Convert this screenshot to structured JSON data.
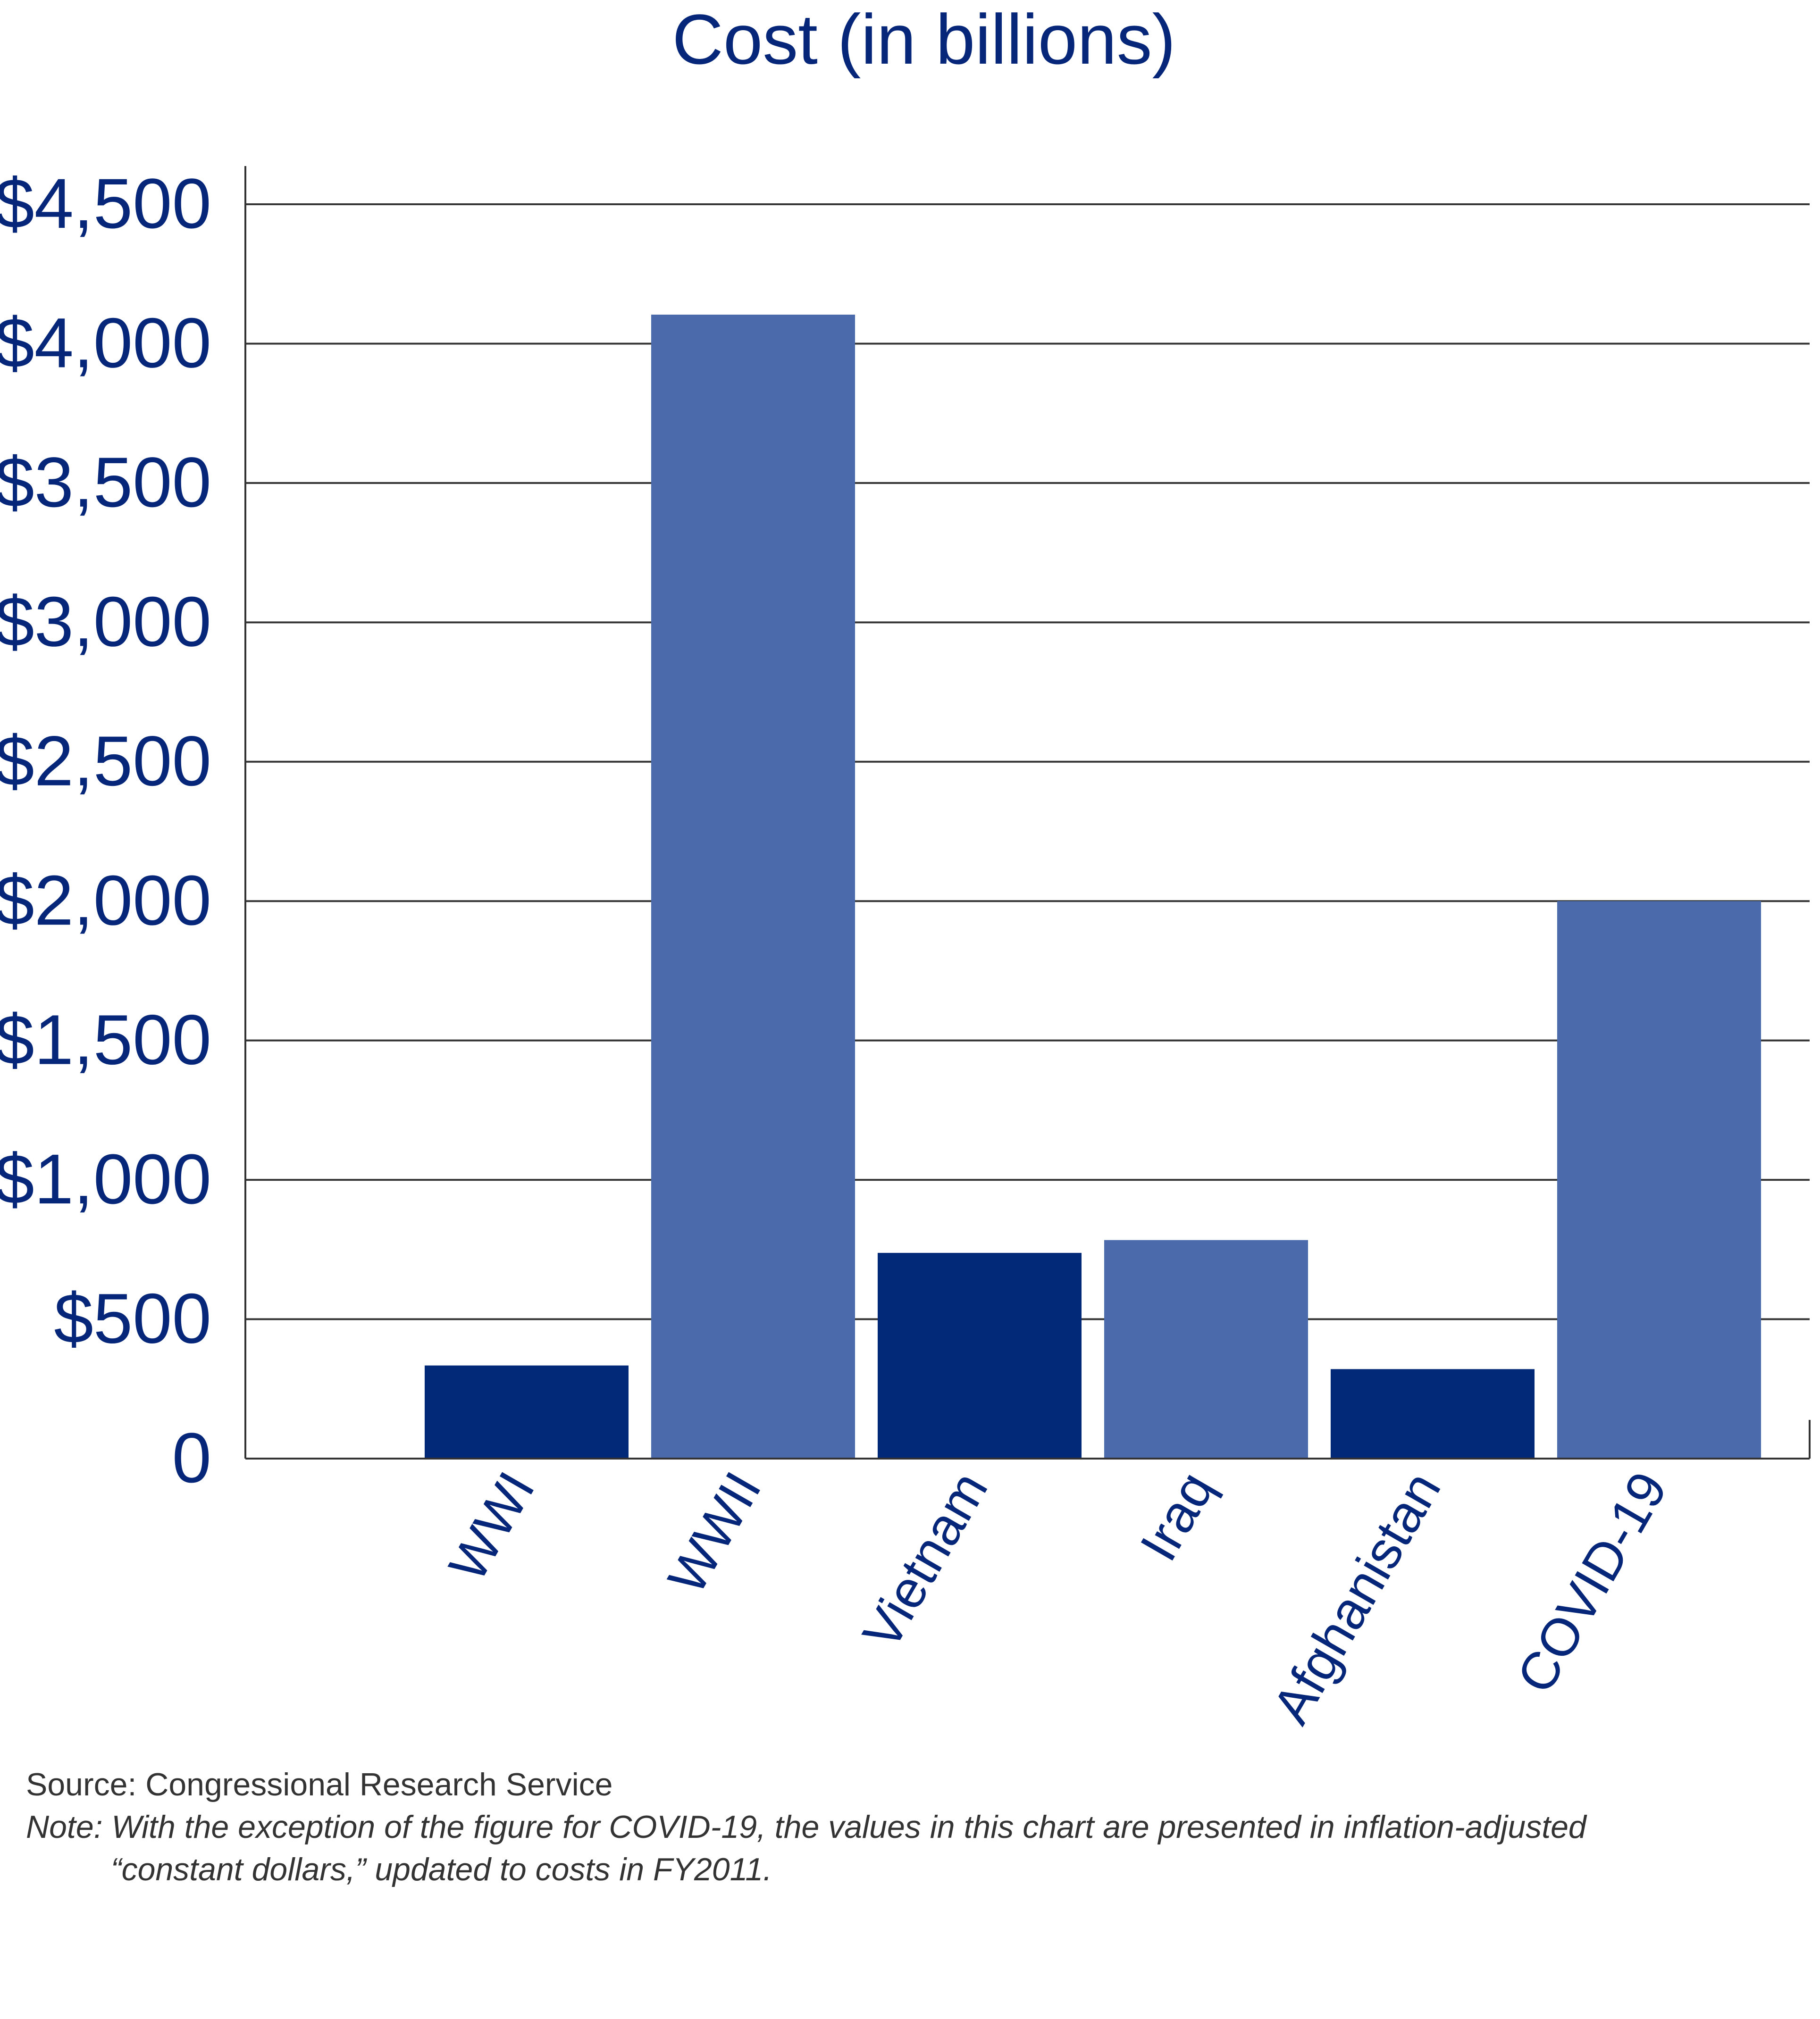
{
  "chart_data": {
    "type": "bar",
    "title": "Cost (in billions)",
    "xlabel": "",
    "ylabel": "",
    "categories": [
      "WWI",
      "WWII",
      "Vietnam",
      "Iraq",
      "Afghanistan",
      "COVID-19"
    ],
    "values": [
      334,
      4104,
      738,
      784,
      321,
      2000
    ],
    "bar_colors": [
      "#022878",
      "#4a6aab",
      "#022878",
      "#4a6aab",
      "#022878",
      "#4a6aab"
    ],
    "ylim": [
      0,
      4500
    ],
    "yticks": [
      0,
      500,
      1000,
      1500,
      2000,
      2500,
      3000,
      3500,
      4000,
      4500
    ],
    "ytick_labels": [
      "0",
      "$500",
      "$1,000",
      "$1,500",
      "$2,000",
      "$2,500",
      "$3,000",
      "$3,500",
      "$4,000",
      "$4,500"
    ],
    "grid": true,
    "legend": "none"
  },
  "footer": {
    "source": "Source: Congressional Research Service",
    "note_line1": "Note: With the exception of the figure for COVID-19, the values in this chart are presented in inflation-adjusted",
    "note_line2": "“constant dollars,” updated to costs in FY2011."
  },
  "colors": {
    "text": "#06267a",
    "dark_bar": "#022878",
    "light_bar": "#4a6aab",
    "grid": "#333333"
  }
}
